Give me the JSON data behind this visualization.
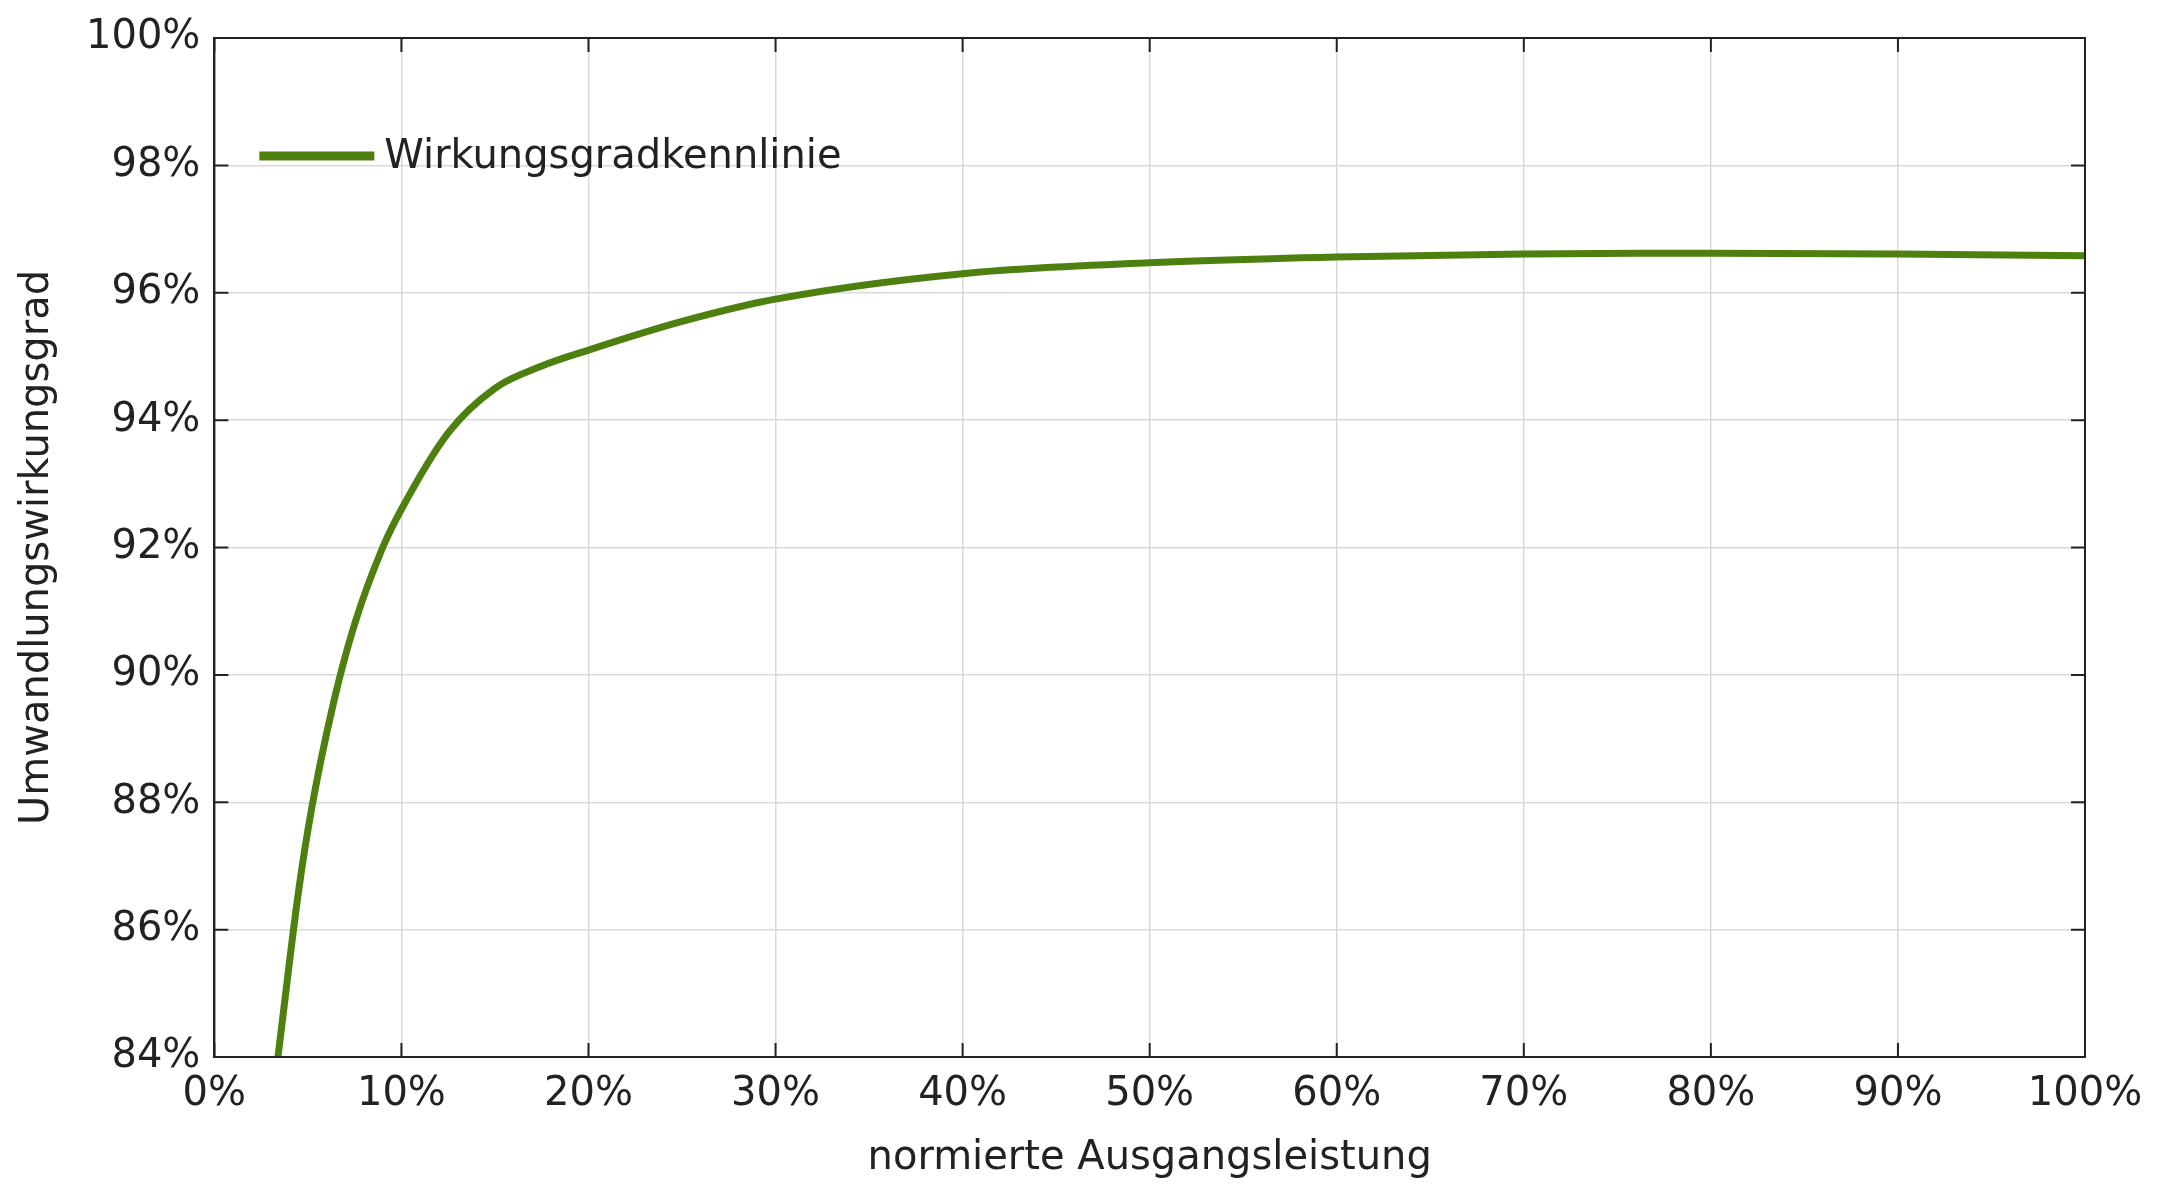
{
  "chart_data": {
    "type": "line",
    "xlabel": "normierte Ausgangsleistung",
    "ylabel": "Umwandlungswirkungsgrad",
    "xlim": [
      0,
      100
    ],
    "ylim": [
      84,
      100
    ],
    "xticks": [
      {
        "value": 0,
        "label": "0%"
      },
      {
        "value": 10,
        "label": "10%"
      },
      {
        "value": 20,
        "label": "20%"
      },
      {
        "value": 30,
        "label": "30%"
      },
      {
        "value": 40,
        "label": "40%"
      },
      {
        "value": 50,
        "label": "50%"
      },
      {
        "value": 60,
        "label": "60%"
      },
      {
        "value": 70,
        "label": "70%"
      },
      {
        "value": 80,
        "label": "80%"
      },
      {
        "value": 90,
        "label": "90%"
      },
      {
        "value": 100,
        "label": "100%"
      }
    ],
    "yticks": [
      {
        "value": 84,
        "label": "84%"
      },
      {
        "value": 86,
        "label": "86%"
      },
      {
        "value": 88,
        "label": "88%"
      },
      {
        "value": 90,
        "label": "90%"
      },
      {
        "value": 92,
        "label": "92%"
      },
      {
        "value": 94,
        "label": "94%"
      },
      {
        "value": 96,
        "label": "96%"
      },
      {
        "value": 98,
        "label": "98%"
      },
      {
        "value": 100,
        "label": "100%"
      }
    ],
    "grid": true,
    "legend": "top left",
    "marker": "none",
    "line_style": "solid",
    "series": [
      {
        "name": "Wirkungsgradkennlinie",
        "color": "#4e8010",
        "x": [
          3.4,
          4.5,
          5.2,
          6.4,
          7.5,
          9,
          10,
          12.5,
          15,
          17.5,
          20,
          25,
          30,
          40,
          50,
          60,
          70,
          80,
          90,
          100
        ],
        "values": [
          84.0,
          86.6,
          87.9,
          89.6,
          90.8,
          92.0,
          92.6,
          93.8,
          94.5,
          94.85,
          95.1,
          95.55,
          95.9,
          96.3,
          96.47,
          96.56,
          96.61,
          96.62,
          96.61,
          96.58
        ]
      }
    ]
  }
}
